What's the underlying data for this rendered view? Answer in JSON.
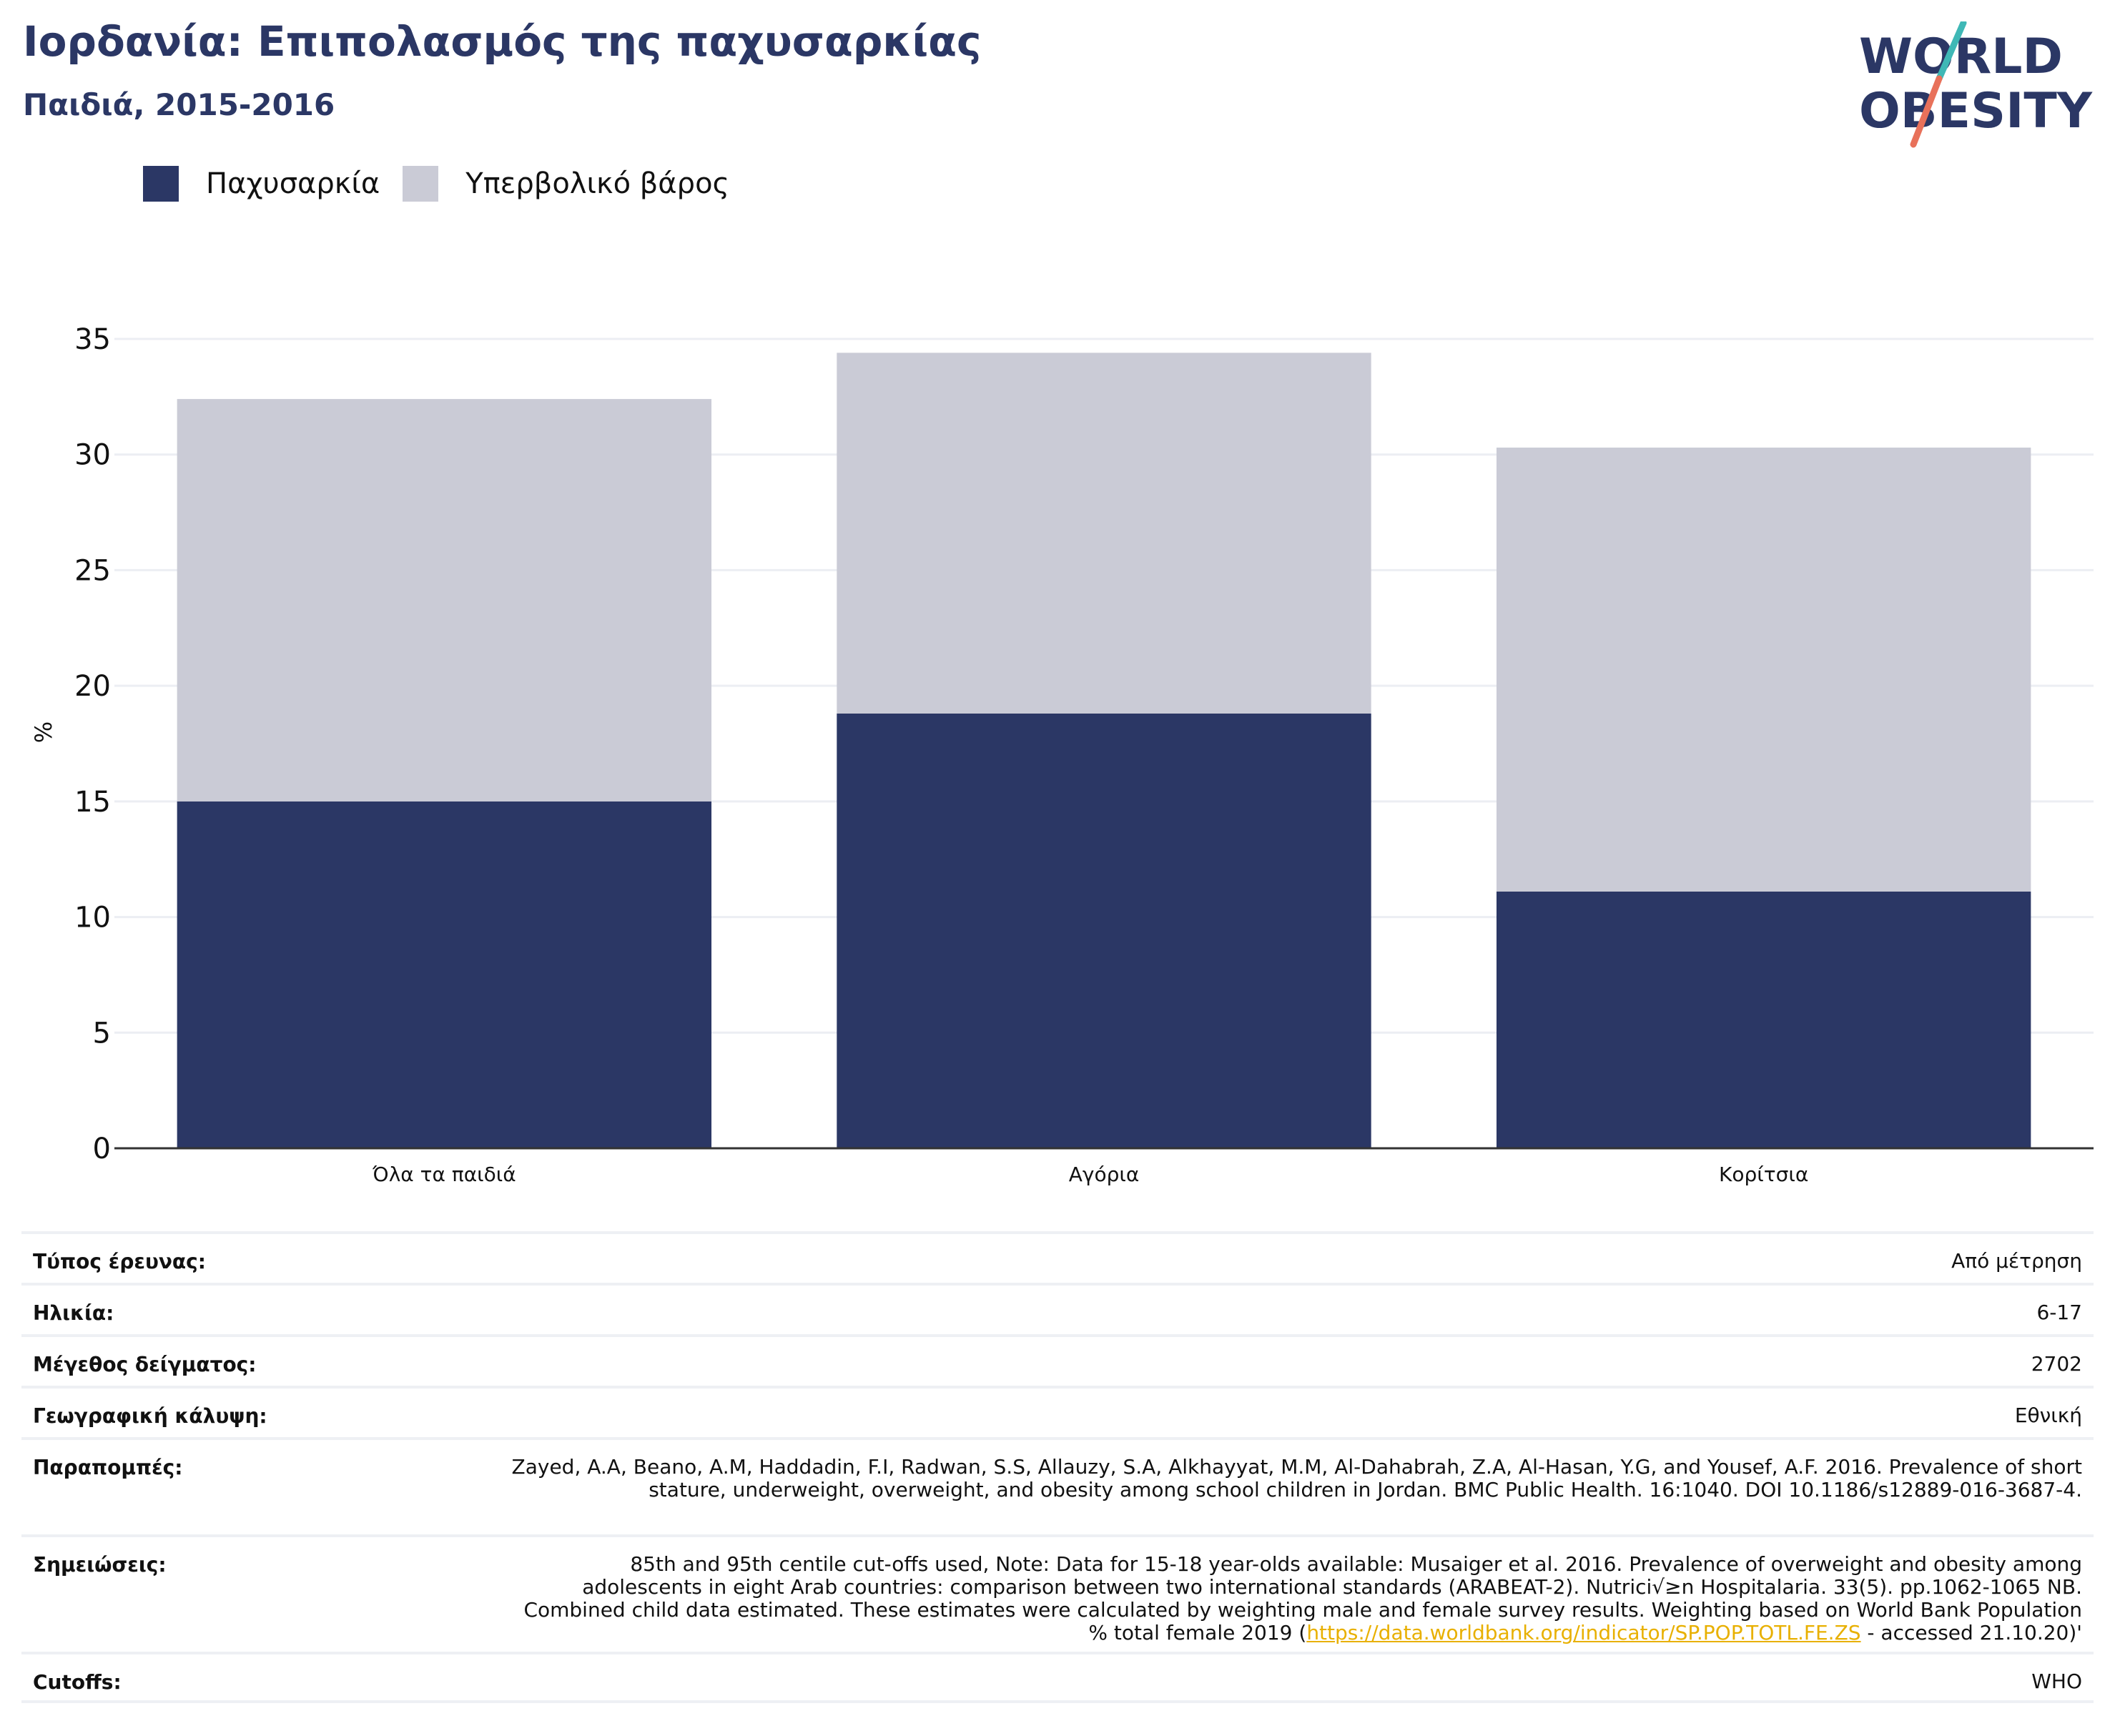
{
  "header": {
    "title": "Ιορδανία: Επιπολασμός της παχυσαρκίας",
    "subtitle": "Παιδιά, 2015-2016"
  },
  "logo": {
    "line1": "WORLD",
    "line2": "OBESITY",
    "colors": {
      "text": "#2b3765",
      "slash_top": "#3fb8b6",
      "slash_bottom": "#e8715a"
    }
  },
  "colors": {
    "obesity": "#2b3765",
    "overweight": "#cacbd6",
    "grid": "#eceef3",
    "axis": "#333333",
    "link": "#e8b000"
  },
  "chart_data": {
    "type": "bar",
    "stacked": true,
    "categories": [
      "Όλα τα παιδιά",
      "Αγόρια",
      "Κορίτσια"
    ],
    "series": [
      {
        "name": "Παχυσαρκία",
        "values": [
          15.0,
          18.8,
          11.1
        ]
      },
      {
        "name": "Υπερβολικό βάρος",
        "values": [
          17.4,
          15.6,
          19.2
        ]
      }
    ],
    "totals": [
      32.4,
      34.4,
      30.3
    ],
    "ylabel": "%",
    "ylim": [
      0,
      35
    ],
    "yticks": [
      0,
      5,
      10,
      15,
      20,
      25,
      30,
      35
    ],
    "grid": true,
    "legend_position": "top-left"
  },
  "info": [
    {
      "label": "Τύπος έρευνας:",
      "value": "Από μέτρηση"
    },
    {
      "label": "Ηλικία:",
      "value": "6-17"
    },
    {
      "label": "Μέγεθος δείγματος:",
      "value": "2702"
    },
    {
      "label": "Γεωγραφική κάλυψη:",
      "value": "Εθνική"
    },
    {
      "label": "Παραπομπές:",
      "value": "Zayed, A.A, Beano, A.M, Haddadin, F.I, Radwan, S.S, Allauzy, S.A, Alkhayyat, M.M, Al-Dahabrah, Z.A, Al-Hasan, Y.G, and Yousef, A.F. 2016. Prevalence of short stature, underweight, overweight, and obesity among school children in Jordan. BMC Public Health. 16:1040. DOI 10.1186/s12889-016-3687-4."
    },
    {
      "label": "Σημειώσεις:",
      "value_pre": "85th and 95th centile cut-offs used, Note: Data for 15-18 year-olds available: Musaiger et al. 2016. Prevalence of overweight and obesity among adolescents in eight Arab countries: comparison between two international standards (ARABEAT-2). Nutrici√≥n Hospitalaria. 33(5). pp.1062-1065 NB. Combined child data estimated. These estimates were calculated by weighting male and female survey results. Weighting based on World Bank Population % total female 2019 (",
      "link": "https://data.worldbank.org/indicator/SP.POP.TOTL.FE.ZS",
      "value_post": " - accessed 21.10.20)'"
    },
    {
      "label": "Cutoffs:",
      "value": "WHO"
    }
  ]
}
